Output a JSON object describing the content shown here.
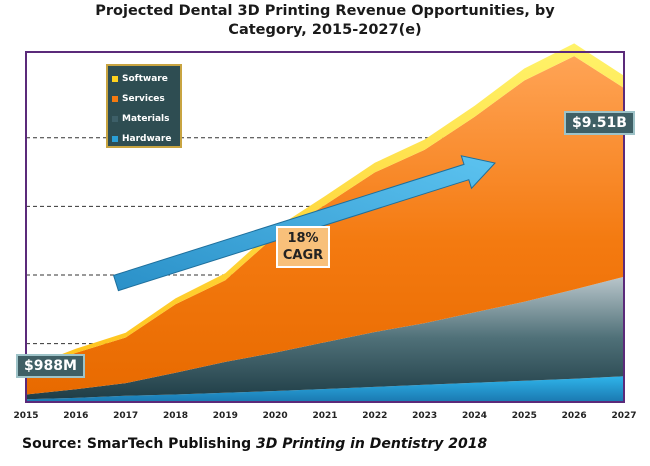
{
  "title_line1": "Projected Dental 3D Printing Revenue Opportunities, by",
  "title_line2": "Category, 2015-2027(e)",
  "source_prefix": "Source: SmarTech Publishing ",
  "source_title": "3D Printing in Dentistry 2018",
  "annotations": {
    "start_value": "$988M",
    "end_value": "$9.51B",
    "cagr_pct": "18%",
    "cagr_label": "CAGR"
  },
  "colors": {
    "software": "#ffd21f",
    "services": "#f47a10",
    "materials": "#3d5f68",
    "hardware": "#2a9fd6",
    "arrow": "#3aa7dc",
    "frame": "#5b2a7a"
  },
  "chart_data": {
    "type": "area",
    "stacked": true,
    "x": [
      "2015",
      "2016",
      "2017",
      "2018",
      "2019",
      "2020",
      "2021",
      "2022",
      "2023",
      "2024",
      "2025",
      "2026",
      "2027"
    ],
    "ylim": [
      0,
      10.2
    ],
    "gridlines_at": [
      1.7,
      3.7,
      5.7,
      7.7
    ],
    "y_tick_labels_shown": false,
    "legend": {
      "position": "top-left"
    },
    "series": [
      {
        "name": "Hardware",
        "values": [
          0.08,
          0.12,
          0.18,
          0.22,
          0.27,
          0.32,
          0.38,
          0.44,
          0.5,
          0.56,
          0.62,
          0.68,
          0.75
        ]
      },
      {
        "name": "Materials",
        "values": [
          0.14,
          0.25,
          0.37,
          0.63,
          0.9,
          1.12,
          1.36,
          1.6,
          1.8,
          2.05,
          2.3,
          2.6,
          2.9
        ]
      },
      {
        "name": "Services",
        "values": [
          0.67,
          1.06,
          1.33,
          2.0,
          2.38,
          3.4,
          4.0,
          4.65,
          5.05,
          5.7,
          6.45,
          6.8,
          5.5
        ]
      },
      {
        "name": "Software",
        "values": [
          0.1,
          0.12,
          0.14,
          0.17,
          0.2,
          0.22,
          0.26,
          0.28,
          0.3,
          0.32,
          0.35,
          0.37,
          0.36
        ]
      }
    ]
  }
}
